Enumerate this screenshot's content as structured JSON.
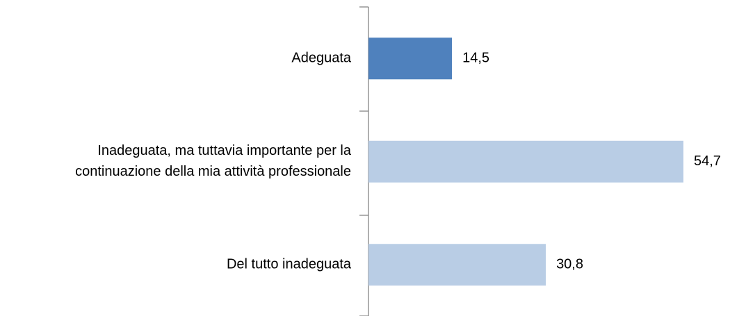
{
  "chart_data": {
    "type": "hbar",
    "categories": [
      "Adeguata",
      "Inadeguata, ma tuttavia importante per la\ncontinuazione della mia attività professionale",
      "Del tutto inadeguata"
    ],
    "values": [
      14.5,
      54.7,
      30.8
    ],
    "value_labels": [
      "14,5",
      "54,7",
      "30,8"
    ],
    "colors": [
      "#4f81bd",
      "#b9cde5",
      "#b9cde5"
    ]
  }
}
